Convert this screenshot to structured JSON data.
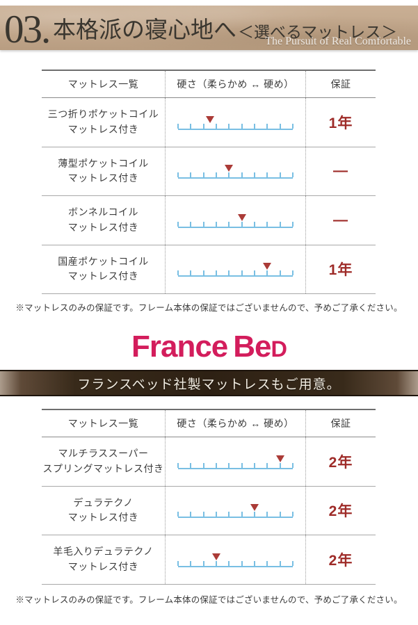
{
  "header": {
    "number": "03.",
    "title": "本格派の寝心地へ",
    "subtitle": "＜選べるマットレス＞",
    "tagline": "The Pursuit of Real Comfortable"
  },
  "scale": {
    "tick_count": 10,
    "soft_label": "柔らかめ",
    "hard_label": "硬め"
  },
  "tables": [
    {
      "columns": {
        "name": "マットレス一覧",
        "hardness": "硬さ（柔らかめ ↔ 硬め）",
        "warranty": "保証"
      },
      "rows": [
        {
          "name_lines": [
            "三つ折りポケットコイル",
            "マットレス付き"
          ],
          "hardness": 2.5,
          "warranty": "1年"
        },
        {
          "name_lines": [
            "薄型ポケットコイル",
            "マットレス付き"
          ],
          "hardness": 4,
          "warranty": "—"
        },
        {
          "name_lines": [
            "ボンネルコイル",
            "マットレス付き"
          ],
          "hardness": 5,
          "warranty": "—"
        },
        {
          "name_lines": [
            "国産ポケットコイル",
            "マットレス付き"
          ],
          "hardness": 7,
          "warranty": "1年"
        }
      ],
      "note": "※マットレスのみの保証です。フレーム本体の保証ではございませんので、予めご了承ください。"
    },
    {
      "columns": {
        "name": "マットレス一覧",
        "hardness": "硬さ（柔らかめ ↔ 硬め）",
        "warranty": "保証"
      },
      "rows": [
        {
          "name_lines": [
            "マルチラススーパー",
            "スプリングマットレス付き"
          ],
          "hardness": 8,
          "warranty": "2年"
        },
        {
          "name_lines": [
            "デュラテクノ",
            "マットレス付き"
          ],
          "hardness": 6,
          "warranty": "2年"
        },
        {
          "name_lines": [
            "羊毛入りデュラテクノ",
            "マットレス付き"
          ],
          "hardness": 3,
          "warranty": "2年"
        }
      ],
      "note": "※マットレスのみの保証です。フレーム本体の保証ではございませんので、予めご了承ください。"
    }
  ],
  "brand": {
    "logo_part1": "France",
    "logo_part2": "Be",
    "logo_part3": "D"
  },
  "banner": {
    "text": "フランスベッド社製マットレスもご用意。"
  },
  "colors": {
    "hero_tan": "#c2a78c",
    "scale_blue": "#79bfe3",
    "marker_red": "#ab3b37",
    "warranty_red": "#9e2b28",
    "logo_pink": "#d31d5c",
    "banner_brown": "#2e2114"
  }
}
